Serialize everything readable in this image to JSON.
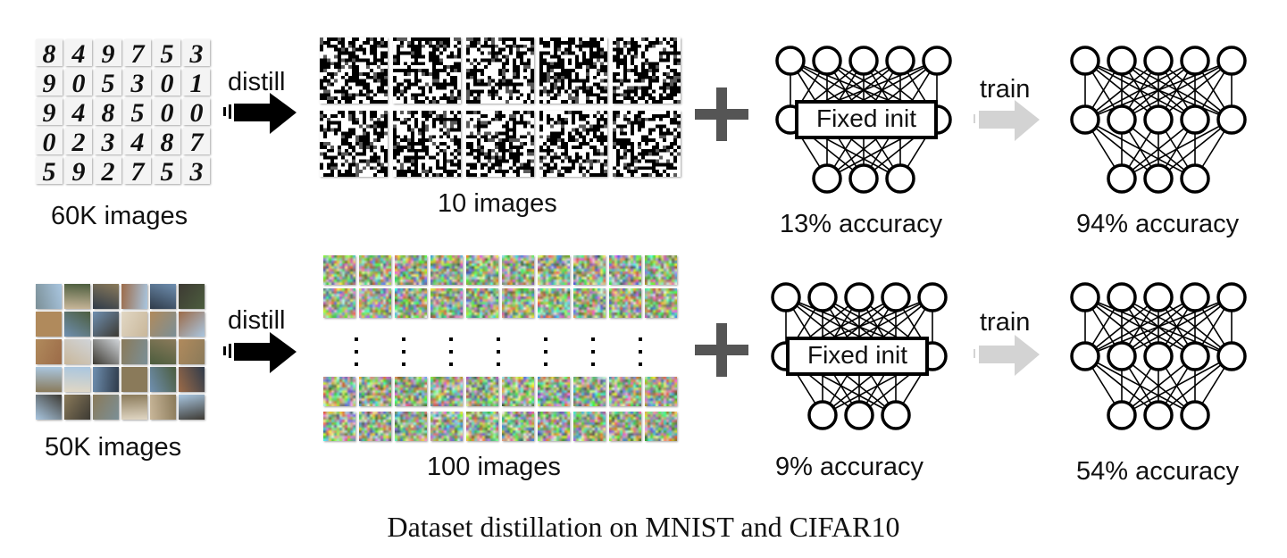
{
  "caption": "Dataset distillation on MNIST and CIFAR10",
  "mnist_row": {
    "source_label": "60K images",
    "distill_label": "distill",
    "distilled_label": "10 images",
    "fixed_init_label": "Fixed init",
    "init_accuracy": "13% accuracy",
    "train_label": "train",
    "trained_accuracy": "94% accuracy",
    "digits": [
      [
        "8",
        "4",
        "9",
        "7",
        "5",
        "3"
      ],
      [
        "9",
        "0",
        "5",
        "3",
        "0",
        "1"
      ],
      [
        "9",
        "4",
        "8",
        "5",
        "0",
        "0"
      ],
      [
        "0",
        "2",
        "3",
        "4",
        "8",
        "7"
      ],
      [
        "5",
        "9",
        "2",
        "7",
        "5",
        "3"
      ]
    ]
  },
  "cifar_row": {
    "source_label": "50K images",
    "distill_label": "distill",
    "distilled_label": "100 images",
    "fixed_init_label": "Fixed init",
    "init_accuracy": "9% accuracy",
    "train_label": "train",
    "trained_accuracy": "54% accuracy"
  },
  "colors": {
    "arrow_distill": "#000000",
    "arrow_train": "#d3d3d3",
    "plus": "#555555"
  }
}
